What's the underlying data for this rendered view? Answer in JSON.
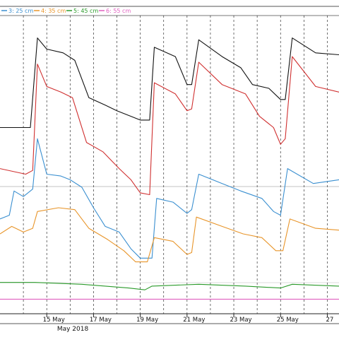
{
  "chart_data": {
    "type": "line",
    "x_axis": {
      "ticks": [
        "15 May",
        "17 May",
        "19 May",
        "21 May",
        "23 May",
        "25 May",
        "27"
      ],
      "month_label": "May 2018",
      "gridline_style": "dashed, one per day"
    },
    "legend": {
      "placement": "top-left",
      "entries": [
        {
          "label": "3: 25 cm",
          "color": "#3a8fd0"
        },
        {
          "label": "4: 35 cm",
          "color": "#e8952a"
        },
        {
          "label": "5: 45 cm",
          "color": "#2a9a2a"
        },
        {
          "label": "6: 55 cm",
          "color": "#e060c0"
        }
      ]
    },
    "grid": true,
    "series": [
      {
        "name": "",
        "color": "#111111",
        "values": [
          [
            "2018-05-13",
            0.48
          ],
          [
            "2018-05-13.5",
            0.48
          ],
          [
            "2018-05-14.3",
            0.48
          ],
          [
            "2018-05-14.6",
            0.96
          ],
          [
            "2018-05-15.0",
            0.9
          ],
          [
            "2018-05-15.7",
            0.88
          ],
          [
            "2018-05-16.2",
            0.84
          ],
          [
            "2018-05-16.8",
            0.64
          ],
          [
            "2018-05-17.5",
            0.6
          ],
          [
            "2018-05-18.0",
            0.57
          ],
          [
            "2018-05-18.6",
            0.54
          ],
          [
            "2018-05-19.0",
            0.52
          ],
          [
            "2018-05-19.4",
            0.52
          ],
          [
            "2018-05-19.6",
            0.91
          ],
          [
            "2018-05-20.5",
            0.86
          ],
          [
            "2018-05-21.0",
            0.71
          ],
          [
            "2018-05-21.2",
            0.71
          ],
          [
            "2018-05-21.5",
            0.95
          ],
          [
            "2018-05-22.5",
            0.86
          ],
          [
            "2018-05-23.3",
            0.8
          ],
          [
            "2018-05-23.8",
            0.71
          ],
          [
            "2018-05-24.5",
            0.69
          ],
          [
            "2018-05-25.0",
            0.63
          ],
          [
            "2018-05-25.2",
            0.63
          ],
          [
            "2018-05-25.5",
            0.96
          ],
          [
            "2018-05-26.5",
            0.88
          ],
          [
            "2018-05-27.5",
            0.87
          ]
        ]
      },
      {
        "name": "",
        "color": "#d03030",
        "values": [
          [
            "2018-05-13",
            0.26
          ],
          [
            "2018-05-14.1",
            0.23
          ],
          [
            "2018-05-14.4",
            0.25
          ],
          [
            "2018-05-14.6",
            0.82
          ],
          [
            "2018-05-15.0",
            0.7
          ],
          [
            "2018-05-15.6",
            0.67
          ],
          [
            "2018-05-16.1",
            0.64
          ],
          [
            "2018-05-16.7",
            0.4
          ],
          [
            "2018-05-17.4",
            0.35
          ],
          [
            "2018-05-18.1",
            0.26
          ],
          [
            "2018-05-18.6",
            0.2
          ],
          [
            "2018-05-19.0",
            0.13
          ],
          [
            "2018-05-19.4",
            0.12
          ],
          [
            "2018-05-19.6",
            0.72
          ],
          [
            "2018-05-20.5",
            0.66
          ],
          [
            "2018-05-21.0",
            0.57
          ],
          [
            "2018-05-21.2",
            0.58
          ],
          [
            "2018-05-21.5",
            0.83
          ],
          [
            "2018-05-22.5",
            0.71
          ],
          [
            "2018-05-23.5",
            0.66
          ],
          [
            "2018-05-24.1",
            0.54
          ],
          [
            "2018-05-24.7",
            0.48
          ],
          [
            "2018-05-25.0",
            0.39
          ],
          [
            "2018-05-25.2",
            0.42
          ],
          [
            "2018-05-25.5",
            0.86
          ],
          [
            "2018-05-26.5",
            0.7
          ],
          [
            "2018-05-27.5",
            0.67
          ]
        ]
      },
      {
        "name": "3: 25 cm",
        "color": "#3a8fd0",
        "values": [
          [
            "2018-05-13",
            -0.01
          ],
          [
            "2018-05-13.4",
            0.01
          ],
          [
            "2018-05-13.6",
            0.14
          ],
          [
            "2018-05-14.0",
            0.11
          ],
          [
            "2018-05-14.4",
            0.15
          ],
          [
            "2018-05-14.6",
            0.42
          ],
          [
            "2018-05-15.0",
            0.23
          ],
          [
            "2018-05-15.6",
            0.22
          ],
          [
            "2018-05-16.0",
            0.2
          ],
          [
            "2018-05-16.5",
            0.16
          ],
          [
            "2018-05-17.0",
            0.05
          ],
          [
            "2018-05-17.5",
            -0.05
          ],
          [
            "2018-05-18.1",
            -0.08
          ],
          [
            "2018-05-18.6",
            -0.17
          ],
          [
            "2018-05-19.0",
            -0.22
          ],
          [
            "2018-05-19.5",
            -0.22
          ],
          [
            "2018-05-19.7",
            0.1
          ],
          [
            "2018-05-20.4",
            0.08
          ],
          [
            "2018-05-21.0",
            0.02
          ],
          [
            "2018-05-21.2",
            0.04
          ],
          [
            "2018-05-21.5",
            0.23
          ],
          [
            "2018-05-22.5",
            0.18
          ],
          [
            "2018-05-23.3",
            0.14
          ],
          [
            "2018-05-24.2",
            0.1
          ],
          [
            "2018-05-24.7",
            0.03
          ],
          [
            "2018-05-25.0",
            0.01
          ],
          [
            "2018-05-25.3",
            0.26
          ],
          [
            "2018-05-26.4",
            0.18
          ],
          [
            "2018-05-27.5",
            0.2
          ]
        ]
      },
      {
        "name": "4: 35 cm",
        "color": "#e8952a",
        "values": [
          [
            "2018-05-13",
            -0.09
          ],
          [
            "2018-05-13.5",
            -0.05
          ],
          [
            "2018-05-14.0",
            -0.08
          ],
          [
            "2018-05-14.4",
            -0.06
          ],
          [
            "2018-05-14.6",
            0.03
          ],
          [
            "2018-05-15.5",
            0.05
          ],
          [
            "2018-05-16.2",
            0.04
          ],
          [
            "2018-05-16.8",
            -0.06
          ],
          [
            "2018-05-17.6",
            -0.12
          ],
          [
            "2018-05-18.3",
            -0.18
          ],
          [
            "2018-05-18.8",
            -0.24
          ],
          [
            "2018-05-19.3",
            -0.24
          ],
          [
            "2018-05-19.6",
            -0.11
          ],
          [
            "2018-05-20.4",
            -0.13
          ],
          [
            "2018-05-21.0",
            -0.2
          ],
          [
            "2018-05-21.2",
            -0.19
          ],
          [
            "2018-05-21.4",
            0.0
          ],
          [
            "2018-05-22.5",
            -0.05
          ],
          [
            "2018-05-23.4",
            -0.09
          ],
          [
            "2018-05-24.2",
            -0.11
          ],
          [
            "2018-05-24.8",
            -0.18
          ],
          [
            "2018-05-25.1",
            -0.18
          ],
          [
            "2018-05-25.4",
            -0.01
          ],
          [
            "2018-05-26.5",
            -0.06
          ],
          [
            "2018-05-27.5",
            -0.07
          ]
        ]
      },
      {
        "name": "5: 45 cm",
        "color": "#2a9a2a",
        "values": [
          [
            "2018-05-13",
            -0.35
          ],
          [
            "2018-05-14.5",
            -0.35
          ],
          [
            "2018-05-16.5",
            -0.36
          ],
          [
            "2018-05-18.5",
            -0.38
          ],
          [
            "2018-05-19.2",
            -0.39
          ],
          [
            "2018-05-19.5",
            -0.37
          ],
          [
            "2018-05-21.5",
            -0.36
          ],
          [
            "2018-05-23.5",
            -0.37
          ],
          [
            "2018-05-25.0",
            -0.38
          ],
          [
            "2018-05-25.5",
            -0.36
          ],
          [
            "2018-05-27.5",
            -0.37
          ]
        ]
      },
      {
        "name": "6: 55 cm",
        "color": "#e060c0",
        "values": [
          [
            "2018-05-13",
            -0.44
          ],
          [
            "2018-05-17.0",
            -0.44
          ],
          [
            "2018-05-21.0",
            -0.44
          ],
          [
            "2018-05-25.0",
            -0.44
          ],
          [
            "2018-05-27.5",
            -0.44
          ]
        ]
      }
    ]
  }
}
